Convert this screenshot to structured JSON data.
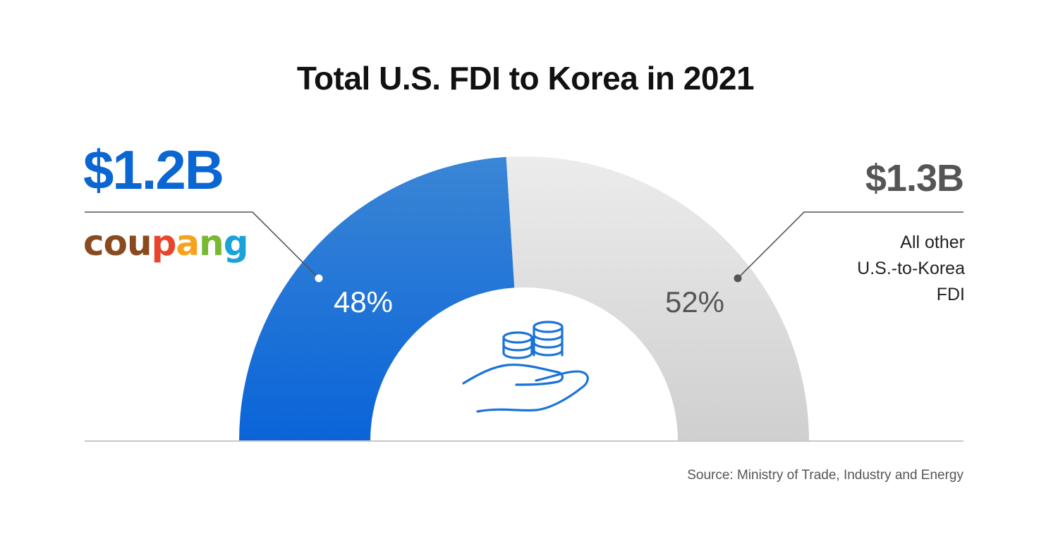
{
  "title": "Total U.S. FDI to Korea in 2021",
  "left": {
    "amount": "$1.2B",
    "brand": "coupang",
    "percent_label": "48%"
  },
  "right": {
    "amount": "$1.3B",
    "label_lines": [
      "All other",
      "U.S.-to-Korea",
      "FDI"
    ],
    "percent_label": "52%"
  },
  "source": "Source: Ministry of Trade, Industry and Energy",
  "colors": {
    "coupang": "#0a66d2",
    "other": "#d4d4d4",
    "brand_letters": [
      "#8a4a1f",
      "#8a4a1f",
      "#8a4a1f",
      "#e8452c",
      "#f7a21b",
      "#78b832",
      "#1aa3d9"
    ]
  },
  "icon": "coins-in-hand-icon",
  "chart_data": {
    "type": "pie",
    "title": "Total U.S. FDI to Korea in 2021",
    "labels": [
      "coupang",
      "All other U.S.-to-Korea FDI"
    ],
    "values": [
      48,
      52
    ],
    "amounts": [
      "$1.2B",
      "$1.3B"
    ],
    "unit": "%"
  }
}
